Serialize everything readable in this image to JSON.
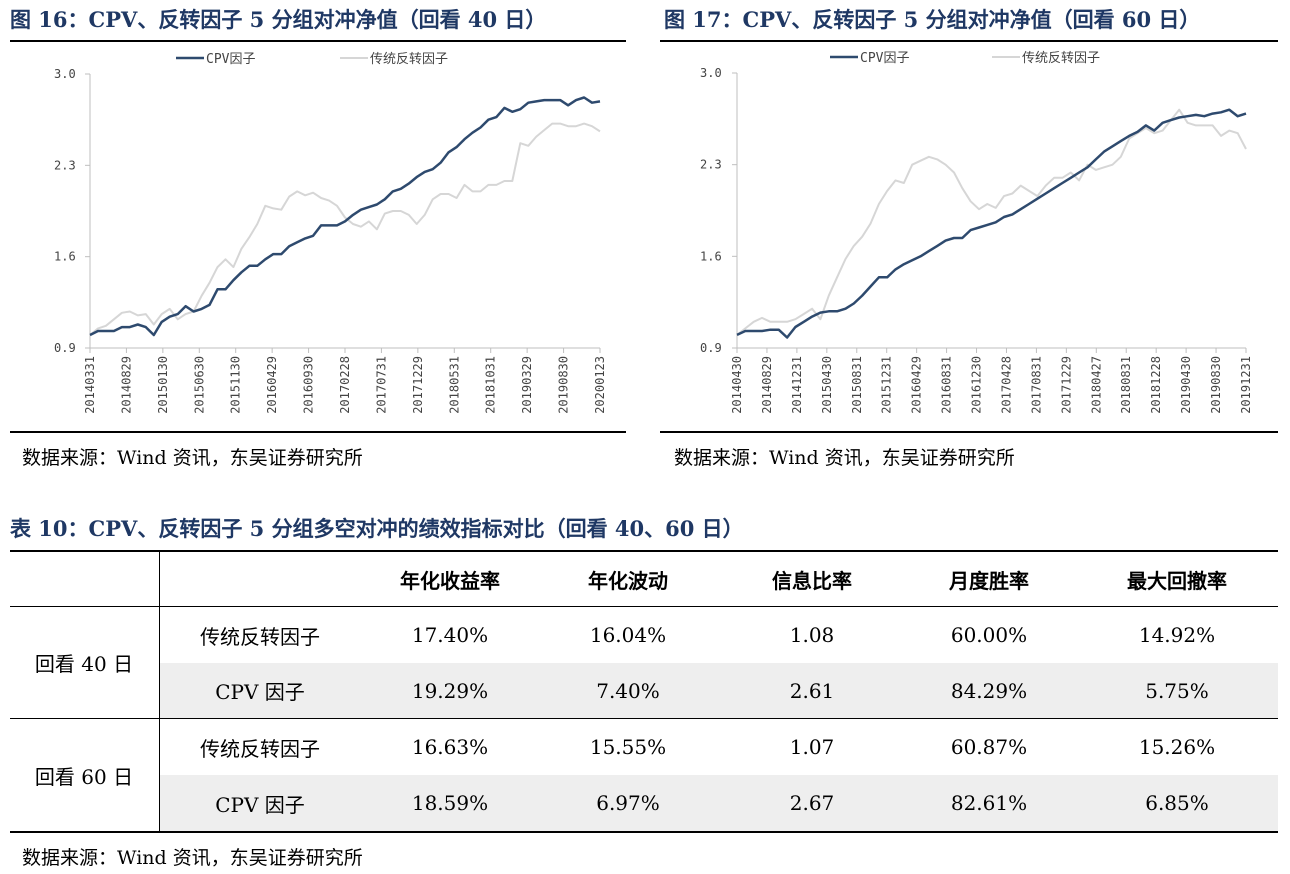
{
  "charts": [
    {
      "title": "图 16：CPV、反转因子 5 分组对冲净值（回看 40 日）",
      "source": "数据来源：Wind 资讯，东吴证券研究所",
      "legend": [
        "CPV因子",
        "传统反转因子"
      ],
      "yticks": [
        "3.0",
        "2.3",
        "1.6",
        "0.9"
      ],
      "xticks": [
        "20140331",
        "20140829",
        "20150130",
        "20150630",
        "20151130",
        "20160429",
        "20160930",
        "20170228",
        "20170731",
        "20171229",
        "20180531",
        "20181031",
        "20190329",
        "20190830",
        "20200123"
      ]
    },
    {
      "title": "图 17：CPV、反转因子 5 分组对冲净值（回看 60 日）",
      "source": "数据来源：Wind 资讯，东吴证券研究所",
      "legend": [
        "CPV因子",
        "传统反转因子"
      ],
      "yticks": [
        "3.0",
        "2.3",
        "1.6",
        "0.9"
      ],
      "xticks": [
        "20140430",
        "20140829",
        "20141231",
        "20150430",
        "20150831",
        "20151231",
        "20160429",
        "20160831",
        "20161230",
        "20170428",
        "20170831",
        "20171229",
        "20180427",
        "20180831",
        "20181228",
        "20190430",
        "20190830",
        "20191231"
      ]
    }
  ],
  "chart_data": [
    {
      "type": "line",
      "title": "图 16：CPV、反转因子 5 分组对冲净值（回看 40 日）",
      "ylim": [
        0.9,
        3.0
      ],
      "yticks": [
        0.9,
        1.6,
        2.3,
        3.0
      ],
      "grid": false,
      "legend_position": "top",
      "colors": {
        "CPV因子": "#2e4a6e",
        "传统反转因子": "#d6d6d6"
      },
      "x_range": [
        "20140331",
        "20200123"
      ],
      "series": [
        {
          "name": "CPV因子",
          "values": [
            1.0,
            1.03,
            1.03,
            1.03,
            1.06,
            1.06,
            1.08,
            1.06,
            1.0,
            1.1,
            1.14,
            1.16,
            1.22,
            1.18,
            1.2,
            1.23,
            1.35,
            1.35,
            1.42,
            1.48,
            1.53,
            1.53,
            1.58,
            1.62,
            1.62,
            1.68,
            1.71,
            1.74,
            1.76,
            1.84,
            1.84,
            1.84,
            1.87,
            1.92,
            1.96,
            1.98,
            2.0,
            2.04,
            2.1,
            2.12,
            2.16,
            2.21,
            2.25,
            2.27,
            2.32,
            2.4,
            2.44,
            2.5,
            2.55,
            2.59,
            2.65,
            2.67,
            2.74,
            2.71,
            2.73,
            2.78,
            2.79,
            2.8,
            2.8,
            2.8,
            2.76,
            2.8,
            2.82,
            2.78,
            2.79
          ]
        },
        {
          "name": "传统反转因子",
          "values": [
            1.0,
            1.05,
            1.07,
            1.12,
            1.17,
            1.18,
            1.15,
            1.16,
            1.08,
            1.16,
            1.2,
            1.12,
            1.16,
            1.18,
            1.3,
            1.4,
            1.52,
            1.58,
            1.52,
            1.66,
            1.75,
            1.85,
            1.99,
            1.97,
            1.96,
            2.06,
            2.1,
            2.07,
            2.09,
            2.05,
            2.03,
            1.99,
            1.9,
            1.85,
            1.83,
            1.87,
            1.81,
            1.93,
            1.95,
            1.95,
            1.92,
            1.85,
            1.92,
            2.04,
            2.08,
            2.08,
            2.05,
            2.15,
            2.1,
            2.1,
            2.15,
            2.15,
            2.18,
            2.18,
            2.47,
            2.45,
            2.52,
            2.57,
            2.62,
            2.62,
            2.6,
            2.6,
            2.62,
            2.6,
            2.56
          ]
        }
      ]
    },
    {
      "type": "line",
      "title": "图 17：CPV、反转因子 5 分组对冲净值（回看 60 日）",
      "ylim": [
        0.9,
        3.0
      ],
      "yticks": [
        0.9,
        1.6,
        2.3,
        3.0
      ],
      "grid": false,
      "legend_position": "top",
      "colors": {
        "CPV因子": "#2e4a6e",
        "传统反转因子": "#d6d6d6"
      },
      "x_range": [
        "20140430",
        "20191231"
      ],
      "series": [
        {
          "name": "CPV因子",
          "values": [
            1.0,
            1.03,
            1.03,
            1.03,
            1.04,
            1.04,
            0.98,
            1.06,
            1.1,
            1.14,
            1.17,
            1.18,
            1.18,
            1.2,
            1.24,
            1.3,
            1.37,
            1.44,
            1.44,
            1.5,
            1.54,
            1.57,
            1.6,
            1.64,
            1.68,
            1.72,
            1.74,
            1.74,
            1.8,
            1.82,
            1.84,
            1.86,
            1.9,
            1.92,
            1.96,
            2.0,
            2.04,
            2.08,
            2.12,
            2.16,
            2.2,
            2.24,
            2.28,
            2.34,
            2.4,
            2.44,
            2.48,
            2.52,
            2.55,
            2.6,
            2.56,
            2.62,
            2.64,
            2.66,
            2.67,
            2.68,
            2.67,
            2.69,
            2.7,
            2.72,
            2.67,
            2.69
          ]
        },
        {
          "name": "传统反转因子",
          "values": [
            1.0,
            1.05,
            1.1,
            1.13,
            1.1,
            1.1,
            1.1,
            1.12,
            1.16,
            1.2,
            1.12,
            1.3,
            1.44,
            1.58,
            1.68,
            1.75,
            1.85,
            2.0,
            2.1,
            2.18,
            2.16,
            2.3,
            2.33,
            2.36,
            2.34,
            2.3,
            2.24,
            2.12,
            2.02,
            1.96,
            2.0,
            1.97,
            2.06,
            2.08,
            2.14,
            2.1,
            2.06,
            2.14,
            2.2,
            2.2,
            2.24,
            2.18,
            2.3,
            2.26,
            2.28,
            2.3,
            2.36,
            2.5,
            2.54,
            2.58,
            2.54,
            2.56,
            2.64,
            2.72,
            2.62,
            2.6,
            2.6,
            2.6,
            2.52,
            2.56,
            2.54,
            2.42
          ]
        }
      ]
    }
  ],
  "table": {
    "title": "表 10：CPV、反转因子 5 分组多空对冲的绩效指标对比（回看 40、60 日）",
    "headers": [
      "年化收益率",
      "年化波动",
      "信息比率",
      "月度胜率",
      "最大回撤率"
    ],
    "groups": [
      {
        "label": "回看 40 日",
        "rows": [
          {
            "name": "传统反转因子",
            "values": [
              "17.40%",
              "16.04%",
              "1.08",
              "60.00%",
              "14.92%"
            ]
          },
          {
            "name": "CPV 因子",
            "values": [
              "19.29%",
              "7.40%",
              "2.61",
              "84.29%",
              "5.75%"
            ]
          }
        ]
      },
      {
        "label": "回看 60 日",
        "rows": [
          {
            "name": "传统反转因子",
            "values": [
              "16.63%",
              "15.55%",
              "1.07",
              "60.87%",
              "15.26%"
            ]
          },
          {
            "name": "CPV 因子",
            "values": [
              "18.59%",
              "6.97%",
              "2.67",
              "82.61%",
              "6.85%"
            ]
          }
        ]
      }
    ],
    "source": "数据来源：Wind 资讯，东吴证券研究所"
  }
}
